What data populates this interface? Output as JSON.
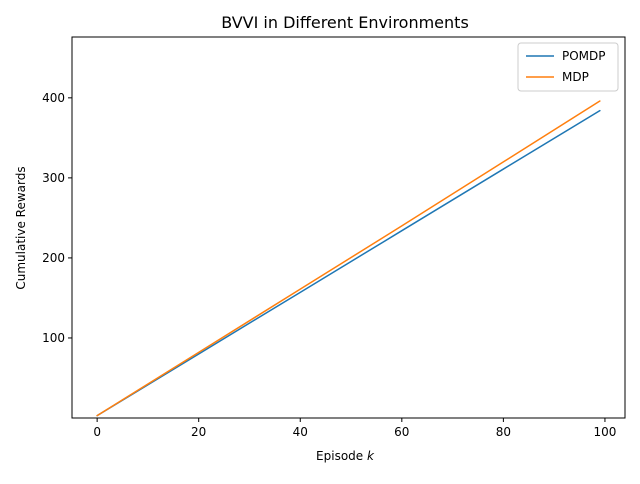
{
  "chart_data": {
    "type": "line",
    "title": "BVVI in Different Environments",
    "xlabel": "Episode",
    "xlabel_var": "k",
    "ylabel": "Cumulative Rewards",
    "xlim": [
      -4.95,
      103.95
    ],
    "ylim": [
      0,
      476
    ],
    "x_ticks": [
      0,
      20,
      40,
      60,
      80,
      100
    ],
    "y_ticks": [
      100,
      200,
      300,
      400
    ],
    "x_tick_labels": [
      "0",
      "20",
      "40",
      "60",
      "80",
      "100"
    ],
    "y_tick_labels": [
      "100",
      "200",
      "300",
      "400"
    ],
    "grid": false,
    "legend_position": "top-right",
    "series": [
      {
        "name": "POMDP",
        "color": "#1f77b4",
        "x": [
          0,
          20,
          40,
          60,
          80,
          99
        ],
        "y": [
          3,
          80,
          157,
          234,
          311,
          384
        ]
      },
      {
        "name": "MDP",
        "color": "#ff7f0e",
        "x": [
          0,
          20,
          40,
          60,
          80,
          99
        ],
        "y": [
          3,
          82,
          161,
          240,
          320,
          396
        ]
      }
    ]
  }
}
